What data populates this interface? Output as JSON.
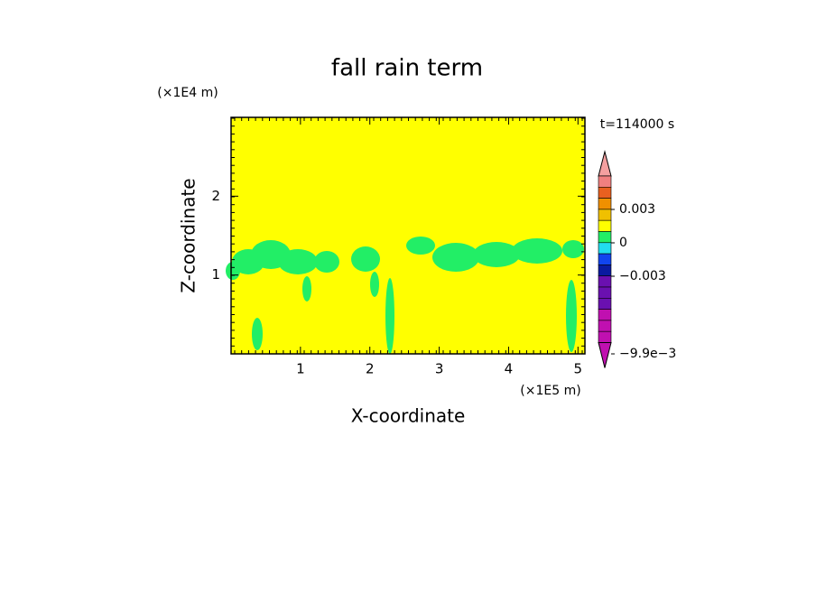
{
  "chart_data": {
    "type": "contour",
    "title": "fall rain term",
    "x_label": "X-coordinate",
    "y_label": "Z-coordinate",
    "x_unit": "(×1E5 m)",
    "y_unit": "(×1E4 m)",
    "time_label": "t=114000 s",
    "xlim": [
      0,
      5.1
    ],
    "xticks": [
      1,
      2,
      3,
      4,
      5
    ],
    "ylim": [
      0,
      3
    ],
    "yticks": [
      1,
      2
    ],
    "field_color": "#ffff00",
    "feature_color": "#22ee66",
    "colorbar": {
      "colors": [
        "#f4a0a0",
        "#f08080",
        "#e86020",
        "#f09000",
        "#f0c000",
        "#ffff00",
        "#22ee66",
        "#22ddee",
        "#1144ee",
        "#0a1aa0",
        "#6a10b0",
        "#6a10b0",
        "#6a10b0",
        "#c010b0",
        "#c010b0",
        "#c010b0",
        "#c010b0"
      ],
      "ticks": [
        {
          "value": 0.003,
          "label": "0.003"
        },
        0,
        {
          "value": -0.003,
          "label": "−0.003"
        },
        {
          "value": -0.0099,
          "label": "−9.9e−3"
        }
      ]
    }
  }
}
